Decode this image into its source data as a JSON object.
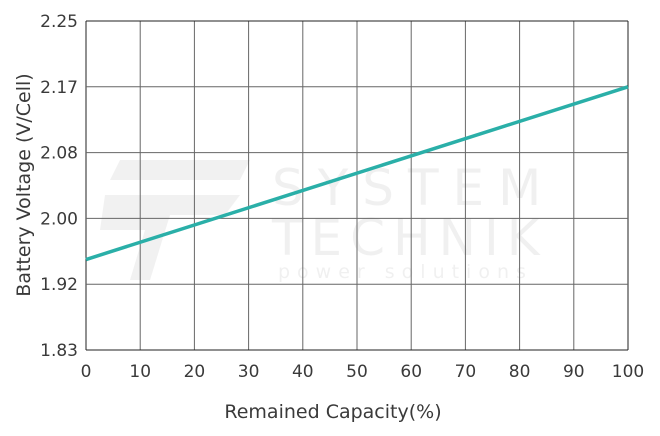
{
  "chart_data": {
    "type": "line",
    "title": "",
    "xlabel": "Remained Capacity(%)",
    "ylabel": "Battery Voltage (V/Cell)",
    "x_ticks": [
      0,
      10,
      20,
      30,
      40,
      50,
      60,
      70,
      80,
      90,
      100
    ],
    "y_ticks": [
      "1.83",
      "1.92",
      "2.00",
      "2.08",
      "2.17",
      "2.25"
    ],
    "xlim": [
      0,
      100
    ],
    "ylim": [
      1.83,
      2.25
    ],
    "grid": true,
    "series": [
      {
        "color": "#2aafa8",
        "x": [
          0,
          100
        ],
        "y": [
          1.95,
          2.17
        ]
      }
    ]
  },
  "watermark": {
    "line1": "SYSTEM",
    "line2": "TECHNIK",
    "line3": "power solutions"
  }
}
